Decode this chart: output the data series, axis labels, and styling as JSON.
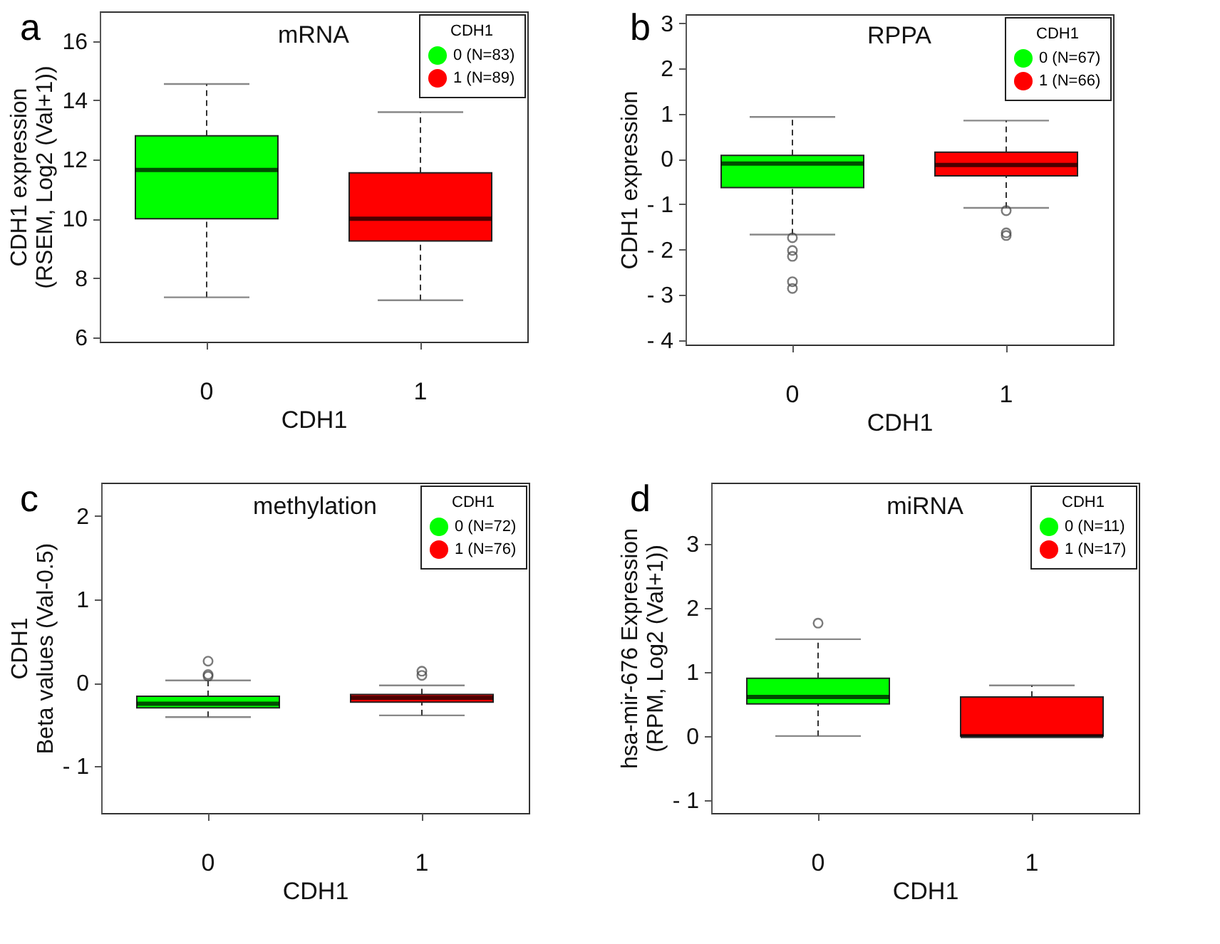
{
  "chart_data": [
    {
      "type": "box",
      "title": "mRNA",
      "annotations": [
        "a"
      ],
      "xlabel": "CDH1",
      "ylabel": "CDH1 expression\n(RSEM, Log2 (Val+1))",
      "legend_title": "CDH1",
      "legend": "top right",
      "categories": [
        "0",
        "1"
      ],
      "ylim": [
        5.85,
        17
      ],
      "yticks": [
        6,
        8,
        10,
        12,
        14,
        16
      ],
      "series": [
        {
          "name": "0 (N=83)",
          "color": "#00ff00",
          "boxes": [
            {
              "low": 7.35,
              "q1": 10.0,
              "median": 11.65,
              "q3": 12.8,
              "high": 14.55
            },
            null
          ]
        },
        {
          "name": "1 (N=89)",
          "color": "#ff0000",
          "boxes": [
            null,
            {
              "low": 7.25,
              "q1": 9.25,
              "median": 10.0,
              "q3": 11.55,
              "high": 13.6
            }
          ]
        }
      ]
    },
    {
      "type": "box",
      "title": "RPPA",
      "annotations": [
        "b"
      ],
      "xlabel": "CDH1",
      "ylabel": "CDH1 expression",
      "legend_title": "CDH1",
      "legend": "top right",
      "categories": [
        "0",
        "1"
      ],
      "ylim": [
        -4.1,
        3.2
      ],
      "yticks": [
        {
          "value": -4,
          "label": "- 4"
        },
        {
          "value": -3,
          "label": "- 3"
        },
        {
          "value": -2,
          "label": "- 2"
        },
        {
          "value": -1,
          "label": "- 1"
        },
        0,
        1,
        2,
        3
      ],
      "series": [
        {
          "name": "0 (N=67)",
          "color": "#00ff00",
          "boxes": [
            {
              "low": -1.67,
              "q1": -0.63,
              "median": -0.1,
              "q3": 0.08,
              "high": 0.93,
              "outliers": [
                -1.74,
                -2.02,
                -2.15,
                -2.71,
                -2.86
              ]
            },
            null
          ]
        },
        {
          "name": "1 (N=66)",
          "color": "#ff0000",
          "boxes": [
            null,
            {
              "low": -1.08,
              "q1": -0.37,
              "median": -0.13,
              "q3": 0.15,
              "high": 0.85,
              "outliers": [
                -1.14,
                -1.63,
                -1.69
              ]
            }
          ]
        }
      ]
    },
    {
      "type": "box",
      "title": "methylation",
      "annotations": [
        "c"
      ],
      "xlabel": "CDH1",
      "ylabel": "CDH1\nBeta values (Val-0.5)",
      "legend_title": "CDH1",
      "legend": "top right",
      "categories": [
        "0",
        "1"
      ],
      "ylim": [
        -1.56,
        2.4
      ],
      "yticks": [
        {
          "value": -1,
          "label": "- 1"
        },
        0,
        1,
        2
      ],
      "series": [
        {
          "name": "0 (N=72)",
          "color": "#00ff00",
          "boxes": [
            {
              "low": -0.41,
              "q1": -0.3,
              "median": -0.25,
              "q3": -0.16,
              "high": 0.03,
              "outliers": [
                0.26,
                0.1,
                0.08
              ]
            },
            null
          ]
        },
        {
          "name": "1 (N=76)",
          "color": "#ff0000",
          "boxes": [
            null,
            {
              "low": -0.39,
              "q1": -0.23,
              "median": -0.18,
              "q3": -0.14,
              "high": -0.03,
              "outliers": [
                0.14,
                0.09
              ]
            }
          ]
        }
      ]
    },
    {
      "type": "box",
      "title": "miRNA",
      "annotations": [
        "d"
      ],
      "xlabel": "CDH1",
      "ylabel": "hsa-mir-676 Expression\n(RPM, Log2 (Val+1))",
      "legend_title": "CDH1",
      "legend": "top right",
      "categories": [
        "0",
        "1"
      ],
      "ylim": [
        -1.2,
        3.95
      ],
      "yticks": [
        {
          "value": -1,
          "label": "- 1"
        },
        0,
        1,
        2,
        3
      ],
      "series": [
        {
          "name": "0 (N=11)",
          "color": "#00ff00",
          "boxes": [
            {
              "low": 0,
              "q1": 0.5,
              "median": 0.61,
              "q3": 0.9,
              "high": 1.51,
              "outliers": [
                1.76
              ]
            },
            null
          ]
        },
        {
          "name": "1 (N=17)",
          "color": "#ff0000",
          "boxes": [
            null,
            {
              "low": 0,
              "q1": 0,
              "median": 0,
              "q3": 0.61,
              "high": 0.79
            }
          ]
        }
      ]
    }
  ]
}
